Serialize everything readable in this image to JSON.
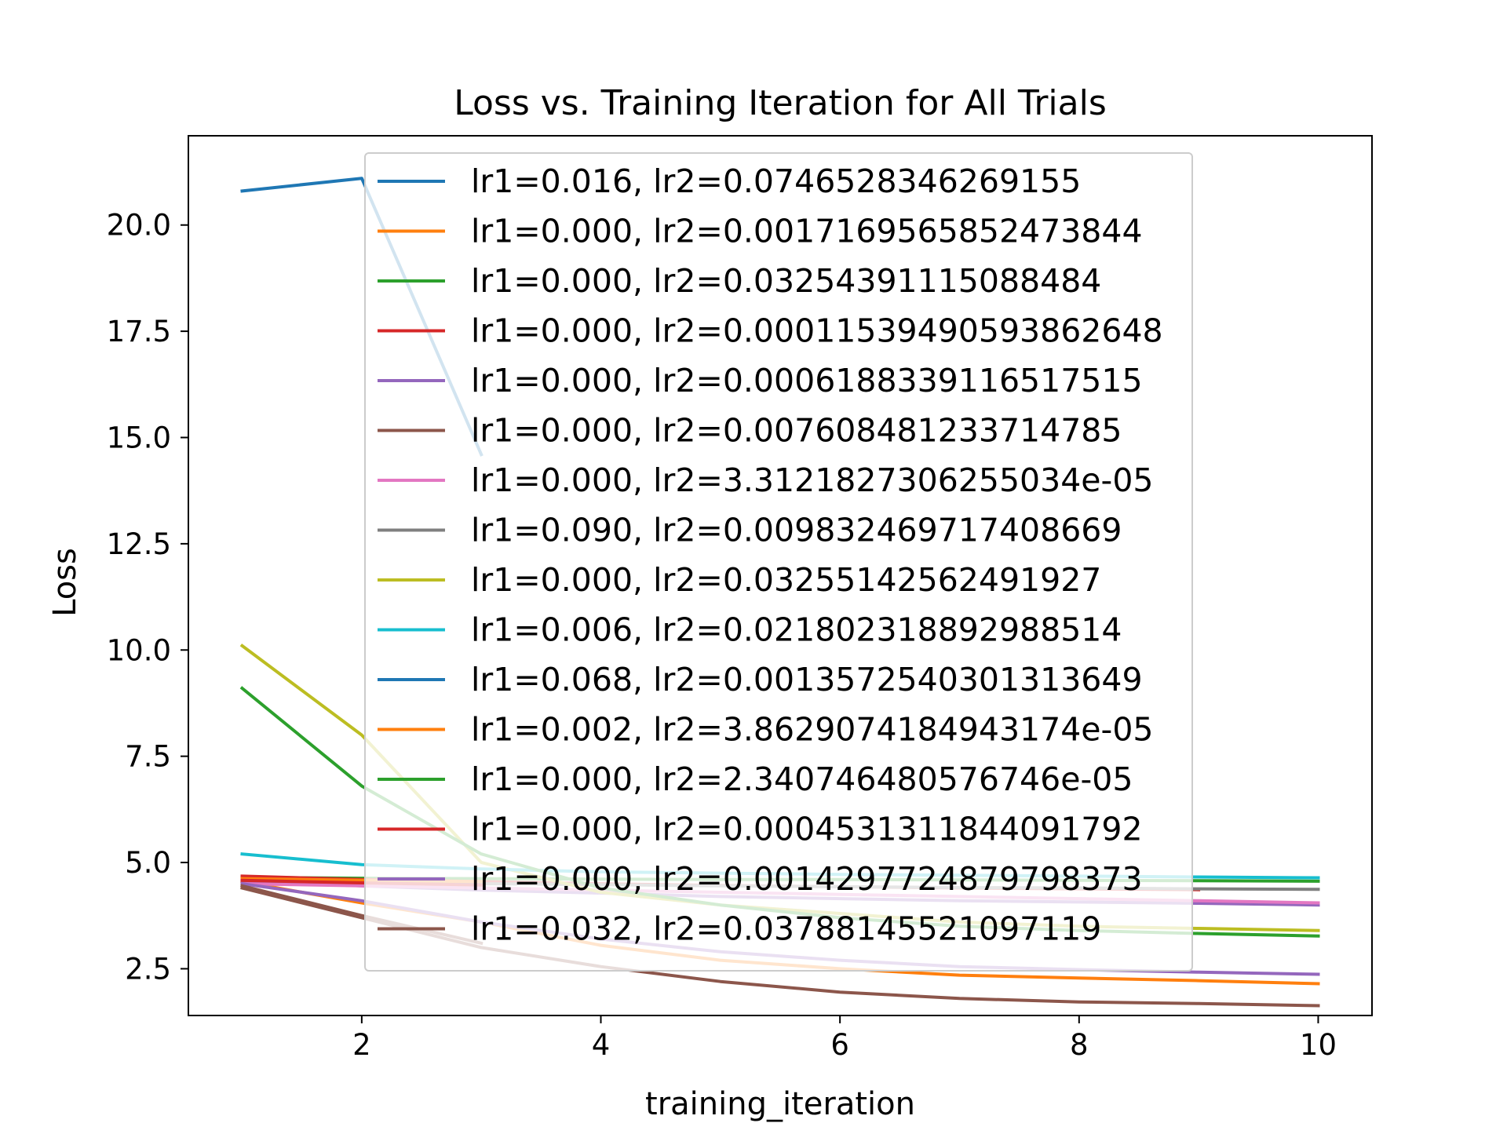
{
  "chart_data": {
    "type": "line",
    "title": "Loss vs. Training Iteration for All Trials",
    "xlabel": "training_iteration",
    "ylabel": "Loss",
    "xlim": [
      0.55,
      10.45
    ],
    "ylim": [
      1.4,
      22.1
    ],
    "x_ticks": [
      2,
      4,
      6,
      8,
      10
    ],
    "x_tick_labels": [
      "2",
      "4",
      "6",
      "8",
      "10"
    ],
    "y_ticks": [
      2.5,
      5.0,
      7.5,
      10.0,
      12.5,
      15.0,
      17.5,
      20.0
    ],
    "y_tick_labels": [
      "2.5",
      "5.0",
      "7.5",
      "10.0",
      "12.5",
      "15.0",
      "17.5",
      "20.0"
    ],
    "grid": false,
    "legend_position": "upper-center",
    "legend_frame_alpha": 0.8,
    "series": [
      {
        "name": "lr1=0.016, lr2=0.0746528346269155",
        "color": "#1f77b4",
        "x": [
          1,
          2,
          3
        ],
        "y": [
          20.8,
          21.1,
          14.6
        ]
      },
      {
        "name": "lr1=0.000, lr2=0.00171695658524738​44",
        "color": "#ff7f0e",
        "x": [
          1,
          2,
          3,
          4,
          5,
          6,
          7,
          8,
          9,
          10
        ],
        "y": [
          4.55,
          4.05,
          3.6,
          3.05,
          2.7,
          2.5,
          2.35,
          2.28,
          2.22,
          2.15
        ]
      },
      {
        "name": "lr1=0.000, lr2=0.03254391115088484",
        "color": "#2ca02c",
        "x": [
          1,
          2,
          3,
          4,
          5,
          6,
          7,
          8,
          9,
          10
        ],
        "y": [
          4.65,
          4.63,
          4.62,
          4.61,
          4.6,
          4.6,
          4.59,
          4.58,
          4.57,
          4.56
        ]
      },
      {
        "name": "lr1=0.000, lr2=0.00011539490593862648",
        "color": "#d62728",
        "x": [
          1,
          2,
          3,
          4,
          5,
          6,
          7,
          8,
          9
        ],
        "y": [
          4.68,
          4.6,
          4.55,
          4.5,
          4.46,
          4.43,
          4.4,
          4.38,
          4.36
        ]
      },
      {
        "name": "lr1=0.000, lr2=0.0006188339116517515",
        "color": "#9467bd",
        "x": [
          1,
          2,
          3,
          4,
          5,
          6,
          7,
          8,
          9,
          10
        ],
        "y": [
          4.55,
          4.45,
          4.35,
          4.28,
          4.2,
          4.15,
          4.1,
          4.07,
          4.04,
          4.0
        ]
      },
      {
        "name": "lr1=0.000, lr2=0.00760848123371478​5",
        "color": "#8c564b",
        "x": [
          1,
          2,
          3,
          4,
          5,
          6,
          7,
          8,
          9,
          10
        ],
        "y": [
          4.4,
          3.7,
          3.0,
          2.55,
          2.2,
          1.95,
          1.8,
          1.72,
          1.68,
          1.63
        ]
      },
      {
        "name": "lr1=0.000, lr2=3.312182730625503​4e-05",
        "color": "#e377c2",
        "x": [
          1,
          2,
          3,
          4,
          5,
          6,
          7,
          8,
          9,
          10
        ],
        "y": [
          4.5,
          4.45,
          4.4,
          4.35,
          4.3,
          4.25,
          4.2,
          4.15,
          4.1,
          4.05
        ]
      },
      {
        "name": "lr1=0.090, lr2=0.009832469717408669",
        "color": "#7f7f7f",
        "x": [
          1,
          2,
          3,
          4,
          5,
          6,
          7,
          8,
          9,
          10
        ],
        "y": [
          4.6,
          4.55,
          4.5,
          4.48,
          4.45,
          4.43,
          4.41,
          4.4,
          4.38,
          4.37
        ]
      },
      {
        "name": "lr1=0.000, lr2=0.03255142562491927",
        "color": "#bcbd22",
        "x": [
          1,
          2,
          3,
          4,
          5,
          6,
          7,
          8,
          9,
          10
        ],
        "y": [
          10.1,
          8.0,
          5.0,
          4.3,
          4.0,
          3.8,
          3.6,
          3.5,
          3.45,
          3.4
        ]
      },
      {
        "name": "lr1=0.006, lr2=0.021802318892988514",
        "color": "#17becf",
        "x": [
          1,
          2,
          3,
          4,
          5,
          6,
          7,
          8,
          9,
          10
        ],
        "y": [
          5.2,
          4.95,
          4.85,
          4.78,
          4.75,
          4.72,
          4.7,
          4.68,
          4.66,
          4.64
        ]
      },
      {
        "name": "lr1=0.068, lr2=0.001357254030131364​9",
        "color": "#1f77b4",
        "x": [
          1,
          2,
          3
        ],
        "y": [
          4.6,
          4.55,
          4.5
        ]
      },
      {
        "name": "lr1=0.002, lr2=3.862907418494317​4e-05",
        "color": "#ff7f0e",
        "x": [
          1,
          2,
          3
        ],
        "y": [
          4.62,
          4.58,
          4.55
        ]
      },
      {
        "name": "lr1=0.000, lr2=2.340746480576746e-05",
        "color": "#2ca02c",
        "x": [
          1,
          2,
          3,
          4,
          5,
          6,
          7,
          8,
          9,
          10
        ],
        "y": [
          9.1,
          6.8,
          5.2,
          4.4,
          4.0,
          3.7,
          3.5,
          3.4,
          3.33,
          3.27
        ]
      },
      {
        "name": "lr1=0.000, lr2=0.0004531311844091792",
        "color": "#d62728",
        "x": [
          1,
          2,
          3
        ],
        "y": [
          4.58,
          4.52,
          4.47
        ]
      },
      {
        "name": "lr1=0.000, lr2=0.001429772487979837​3",
        "color": "#9467bd",
        "x": [
          1,
          2,
          3,
          4,
          5,
          6,
          7,
          8,
          9,
          10
        ],
        "y": [
          4.5,
          4.1,
          3.6,
          3.2,
          2.9,
          2.7,
          2.55,
          2.48,
          2.42,
          2.37
        ]
      },
      {
        "name": "lr1=0.032, lr2=0.03788145521097119",
        "color": "#8c564b",
        "x": [
          1,
          2,
          3
        ],
        "y": [
          4.45,
          3.75,
          3.1
        ]
      }
    ]
  }
}
